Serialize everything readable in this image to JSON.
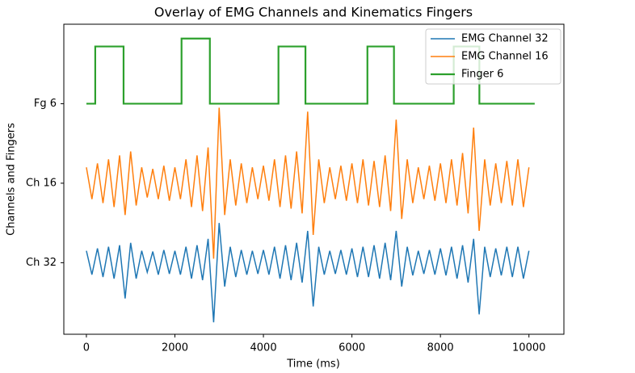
{
  "chart_data": {
    "type": "line",
    "title": "Overlay of EMG Channels and Kinematics Fingers",
    "x_label": "Time (ms)",
    "y_label": "Channels and Fingers",
    "xlim": [
      -510,
      10790
    ],
    "xticks": [
      0,
      2000,
      4000,
      6000,
      8000,
      10000
    ],
    "ylim": [
      -0.9,
      3.0
    ],
    "yticks": [
      {
        "value": 0,
        "label": "Ch 32"
      },
      {
        "value": 1,
        "label": "Ch 16"
      },
      {
        "value": 2,
        "label": "Fg 6"
      }
    ],
    "grid": false,
    "legend": "upper right",
    "series": [
      {
        "name": "EMG Channel 32",
        "color": "#1f77b4",
        "x": [
          0,
          125,
          250,
          375,
          500,
          625,
          750,
          875,
          1000,
          1125,
          1250,
          1375,
          1500,
          1625,
          1750,
          1875,
          2000,
          2125,
          2250,
          2375,
          2500,
          2625,
          2750,
          2875,
          3000,
          3125,
          3250,
          3375,
          3500,
          3625,
          3750,
          3875,
          4000,
          4125,
          4250,
          4375,
          4500,
          4625,
          4750,
          4875,
          5000,
          5125,
          5250,
          5375,
          5500,
          5625,
          5750,
          5875,
          6000,
          6125,
          6250,
          6375,
          6500,
          6625,
          6750,
          6875,
          7000,
          7125,
          7250,
          7375,
          7500,
          7625,
          7750,
          7875,
          8000,
          8125,
          8250,
          8375,
          8500,
          8625,
          8750,
          8875,
          9000,
          9125,
          9250,
          9375,
          9500,
          9625,
          9750,
          9875,
          10000
        ],
        "values": [
          0.15,
          -0.15,
          0.18,
          -0.18,
          0.2,
          -0.2,
          0.22,
          -0.45,
          0.25,
          -0.2,
          0.15,
          -0.12,
          0.14,
          -0.15,
          0.16,
          -0.14,
          0.15,
          -0.15,
          0.2,
          -0.2,
          0.22,
          -0.22,
          0.3,
          -0.75,
          0.5,
          -0.3,
          0.2,
          -0.18,
          0.16,
          -0.15,
          0.15,
          -0.14,
          0.16,
          -0.15,
          0.2,
          -0.2,
          0.22,
          -0.22,
          0.25,
          -0.25,
          0.4,
          -0.55,
          0.2,
          -0.15,
          0.15,
          -0.14,
          0.16,
          -0.15,
          0.18,
          -0.18,
          0.2,
          -0.18,
          0.22,
          -0.2,
          0.25,
          -0.22,
          0.4,
          -0.3,
          0.2,
          -0.16,
          0.15,
          -0.14,
          0.16,
          -0.15,
          0.18,
          -0.16,
          0.2,
          -0.2,
          0.22,
          -0.25,
          0.3,
          -0.65,
          0.2,
          -0.18,
          0.18,
          -0.16,
          0.2,
          -0.18,
          0.2,
          -0.2,
          0.15
        ]
      },
      {
        "name": "EMG Channel 16",
        "color": "#ff7f0e",
        "x": [
          0,
          125,
          250,
          375,
          500,
          625,
          750,
          875,
          1000,
          1125,
          1250,
          1375,
          1500,
          1625,
          1750,
          1875,
          2000,
          2125,
          2250,
          2375,
          2500,
          2625,
          2750,
          2875,
          3000,
          3125,
          3250,
          3375,
          3500,
          3625,
          3750,
          3875,
          4000,
          4125,
          4250,
          4375,
          4500,
          4625,
          4750,
          4875,
          5000,
          5125,
          5250,
          5375,
          5500,
          5625,
          5750,
          5875,
          6000,
          6125,
          6250,
          6375,
          6500,
          6625,
          6750,
          6875,
          7000,
          7125,
          7250,
          7375,
          7500,
          7625,
          7750,
          7875,
          8000,
          8125,
          8250,
          8375,
          8500,
          8625,
          8750,
          8875,
          9000,
          9125,
          9250,
          9375,
          9500,
          9625,
          9750,
          9875,
          10000
        ],
        "values": [
          1.2,
          0.8,
          1.25,
          0.75,
          1.3,
          0.7,
          1.35,
          0.6,
          1.4,
          0.72,
          1.2,
          0.82,
          1.18,
          0.8,
          1.22,
          0.78,
          1.2,
          0.8,
          1.3,
          0.7,
          1.35,
          0.65,
          1.45,
          0.05,
          1.95,
          0.6,
          1.3,
          0.72,
          1.25,
          0.75,
          1.2,
          0.8,
          1.22,
          0.78,
          1.3,
          0.7,
          1.35,
          0.68,
          1.4,
          0.62,
          1.9,
          0.35,
          1.3,
          0.75,
          1.2,
          0.8,
          1.22,
          0.78,
          1.25,
          0.75,
          1.3,
          0.72,
          1.28,
          0.7,
          1.35,
          0.65,
          1.8,
          0.55,
          1.3,
          0.75,
          1.2,
          0.8,
          1.22,
          0.78,
          1.25,
          0.75,
          1.3,
          0.72,
          1.38,
          0.62,
          1.7,
          0.4,
          1.3,
          0.72,
          1.25,
          0.75,
          1.28,
          0.72,
          1.3,
          0.7,
          1.2
        ]
      },
      {
        "name": "Finger 6",
        "color": "#2ca02c",
        "x": [
          0,
          200,
          200,
          840,
          840,
          2150,
          2150,
          2790,
          2790,
          4340,
          4340,
          4950,
          4950,
          6350,
          6350,
          6950,
          6950,
          8300,
          8300,
          8880,
          8880,
          10130
        ],
        "values": [
          2,
          2,
          2.72,
          2.72,
          2,
          2,
          2.82,
          2.82,
          2,
          2,
          2.72,
          2.72,
          2,
          2,
          2.72,
          2.72,
          2,
          2,
          2.72,
          2.72,
          2,
          2
        ]
      }
    ]
  }
}
